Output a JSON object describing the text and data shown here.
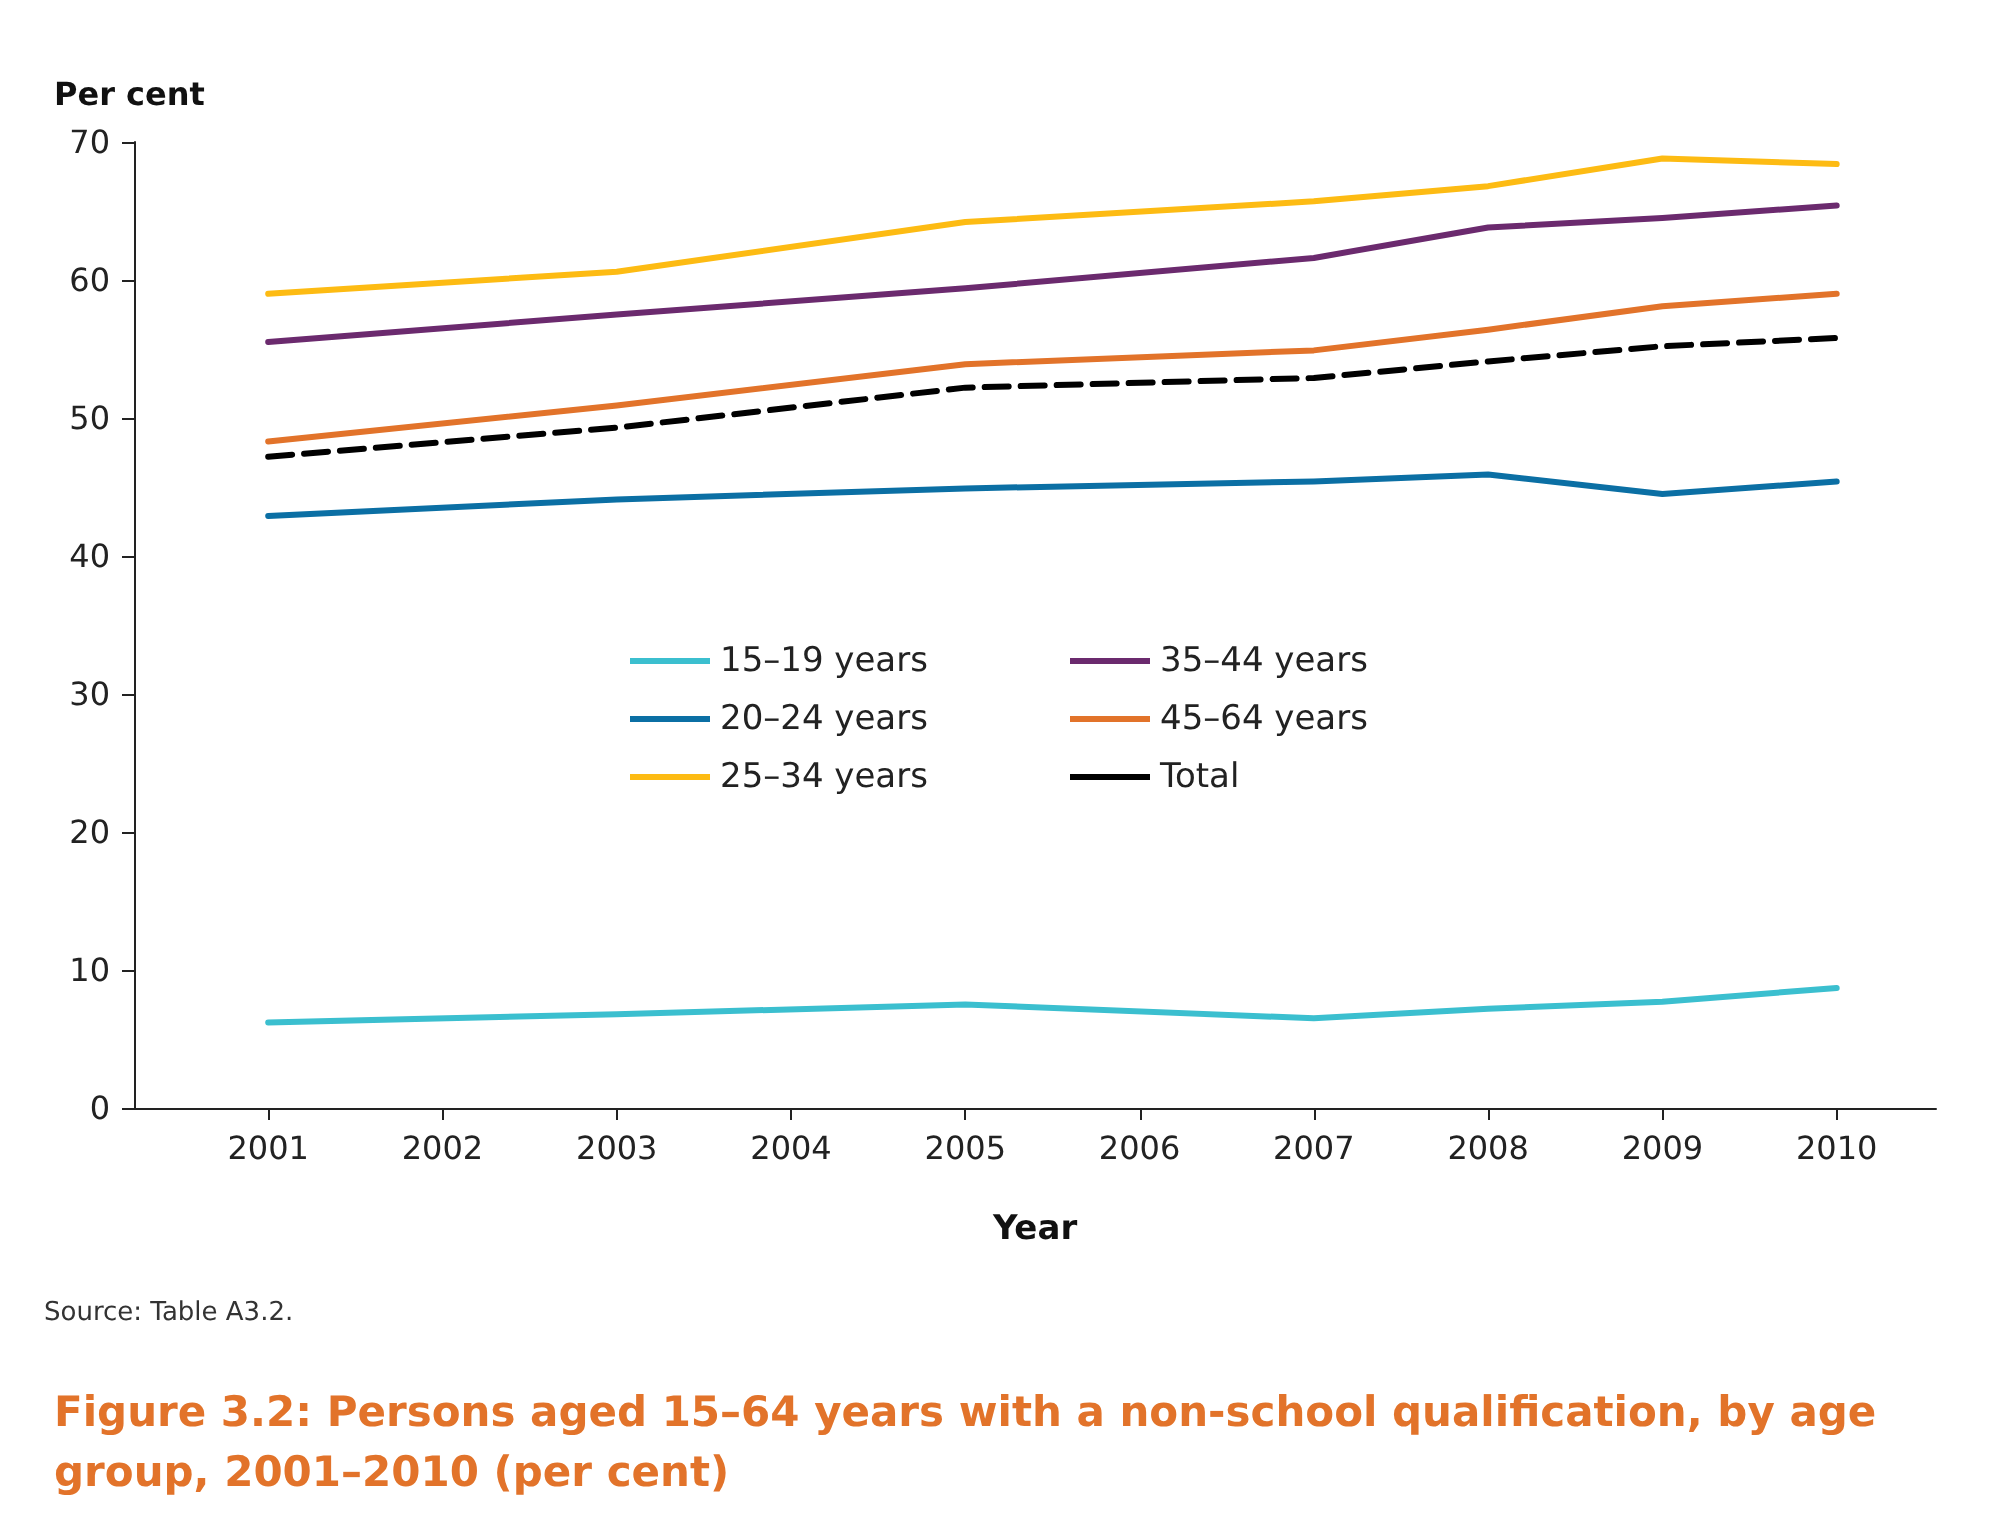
{
  "chart_data": {
    "type": "line",
    "title": "Figure 3.2: Persons aged 15–64 years with a non-school qualification, by age group, 2001–2010 (per cent)",
    "xlabel": "Year",
    "ylabel": "Per cent",
    "annotations": [
      "Source: Table A3.2."
    ],
    "x": [
      2001,
      2003,
      2005,
      2007,
      2008,
      2009,
      2010
    ],
    "xlim": [
      2000.23,
      2010.57
    ],
    "xticks": [
      2001,
      2002,
      2003,
      2004,
      2005,
      2006,
      2007,
      2008,
      2009,
      2010
    ],
    "ylim": [
      0,
      70
    ],
    "yticks": [
      0,
      10,
      20,
      30,
      40,
      50,
      60,
      70
    ],
    "grid": false,
    "legend": "center",
    "marker": "none",
    "series": [
      {
        "name": "15–19 years",
        "color": "#3bbfcf",
        "values": [
          6.2,
          6.8,
          7.5,
          6.5,
          7.2,
          7.7,
          8.7
        ]
      },
      {
        "name": "20–24 years",
        "color": "#0b6fa4",
        "values": [
          42.9,
          44.1,
          44.9,
          45.4,
          45.9,
          44.5,
          45.4
        ]
      },
      {
        "name": "25–34 years",
        "color": "#fdbb13",
        "values": [
          59.0,
          60.6,
          64.2,
          65.7,
          66.8,
          68.8,
          68.4
        ]
      },
      {
        "name": "35–44 years",
        "color": "#6b2a6e",
        "values": [
          55.5,
          57.5,
          59.4,
          61.6,
          63.8,
          64.5,
          65.4
        ]
      },
      {
        "name": "45–64 years",
        "color": "#e2732a",
        "values": [
          48.3,
          50.9,
          53.9,
          54.9,
          56.4,
          58.1,
          59.0
        ]
      },
      {
        "name": "Total",
        "color": "#000000",
        "line_style": "dashed",
        "values": [
          47.2,
          49.3,
          52.2,
          52.9,
          54.1,
          55.2,
          55.8
        ]
      }
    ]
  }
}
